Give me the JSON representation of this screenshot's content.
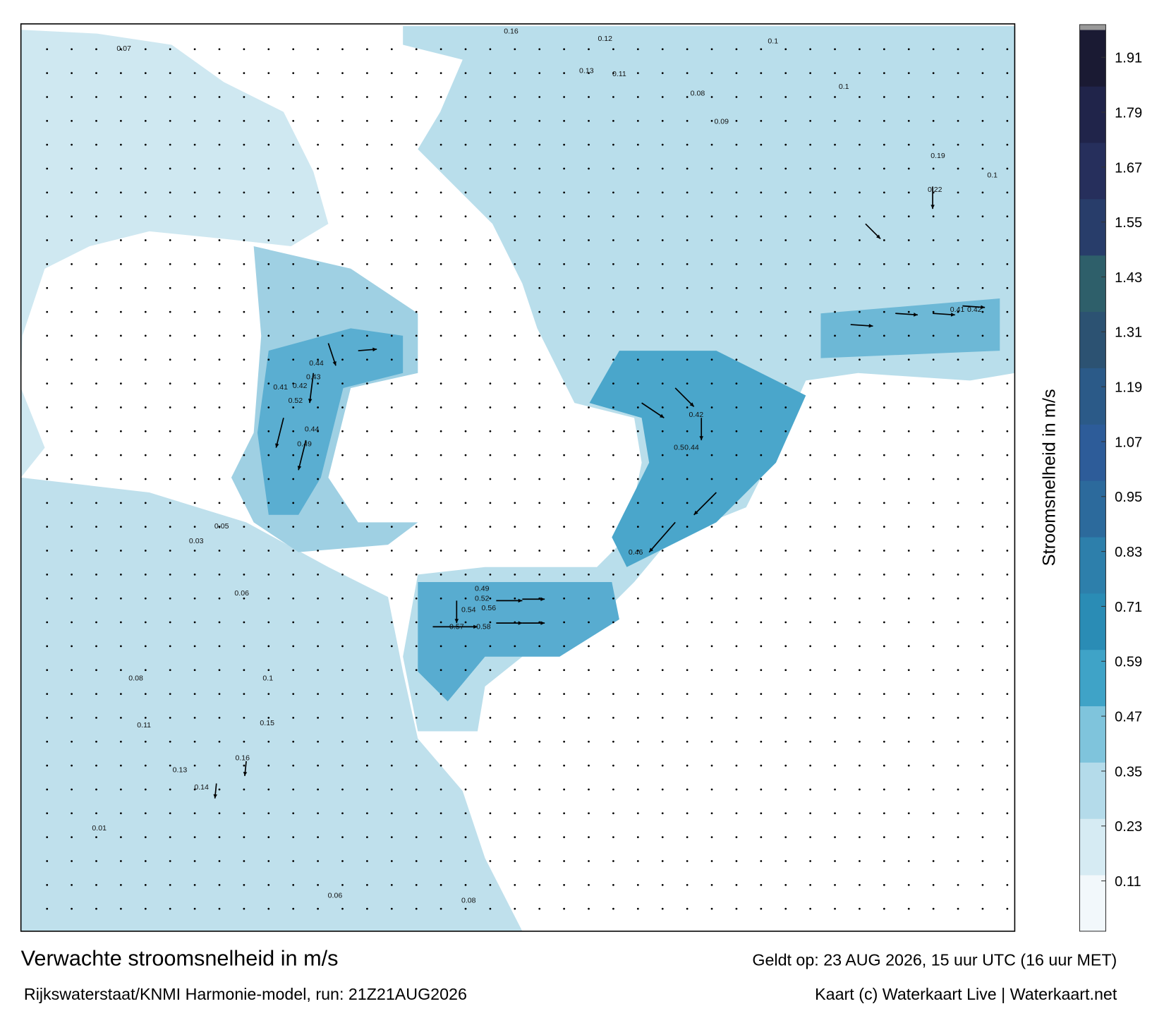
{
  "title": "Verwachte stroomsnelheid in m/s",
  "subtitle": "Rijkswaterstaat/KNMI Harmonie-model, run: 21Z21AUG2026",
  "valid_time": "Geldt op: 23 AUG 2026, 15 uur UTC (16 uur MET)",
  "credit": "Kaart (c) Waterkaart Live | Waterkaart.net",
  "colorbar": {
    "label": "Stroomsnelheid in m/s",
    "range": [
      0,
      1.97
    ],
    "ticks": [
      0.11,
      0.23,
      0.35,
      0.47,
      0.59,
      0.71,
      0.83,
      0.95,
      1.07,
      1.19,
      1.31,
      1.43,
      1.55,
      1.67,
      1.79,
      1.91
    ],
    "colors": [
      "#f2f8fb",
      "#d6ebf3",
      "#b4dbea",
      "#7fc4dc",
      "#3fa3c7",
      "#2a8cb5",
      "#2d7fab",
      "#2c6a9c",
      "#2d5c99",
      "#2b5a88",
      "#2c5272",
      "#2e5f6a",
      "#283d6a",
      "#262f5c",
      "#20244a",
      "#1a1a33"
    ]
  },
  "map_labels": [
    "0.57",
    "0.58",
    "0.54",
    "0.56",
    "0.52",
    "0.49",
    "0.46",
    "0.42",
    "0.44",
    "0.5",
    "0.49",
    "0.44",
    "0.52",
    "0.41",
    "0.42",
    "0.43",
    "0.44",
    "0.16",
    "0.12",
    "0.1",
    "0.13",
    "0.11",
    "0.19",
    "0.22",
    "0.42",
    "0.41",
    "0.1",
    "0.08",
    "0.06",
    "0.15",
    "0.16",
    "0.14",
    "0.13",
    "0.11",
    "0.08",
    "0.1",
    "0.06",
    "0.05",
    "0.03",
    "0.01",
    "0.07",
    "0.1",
    "0.08",
    "0.09"
  ]
}
